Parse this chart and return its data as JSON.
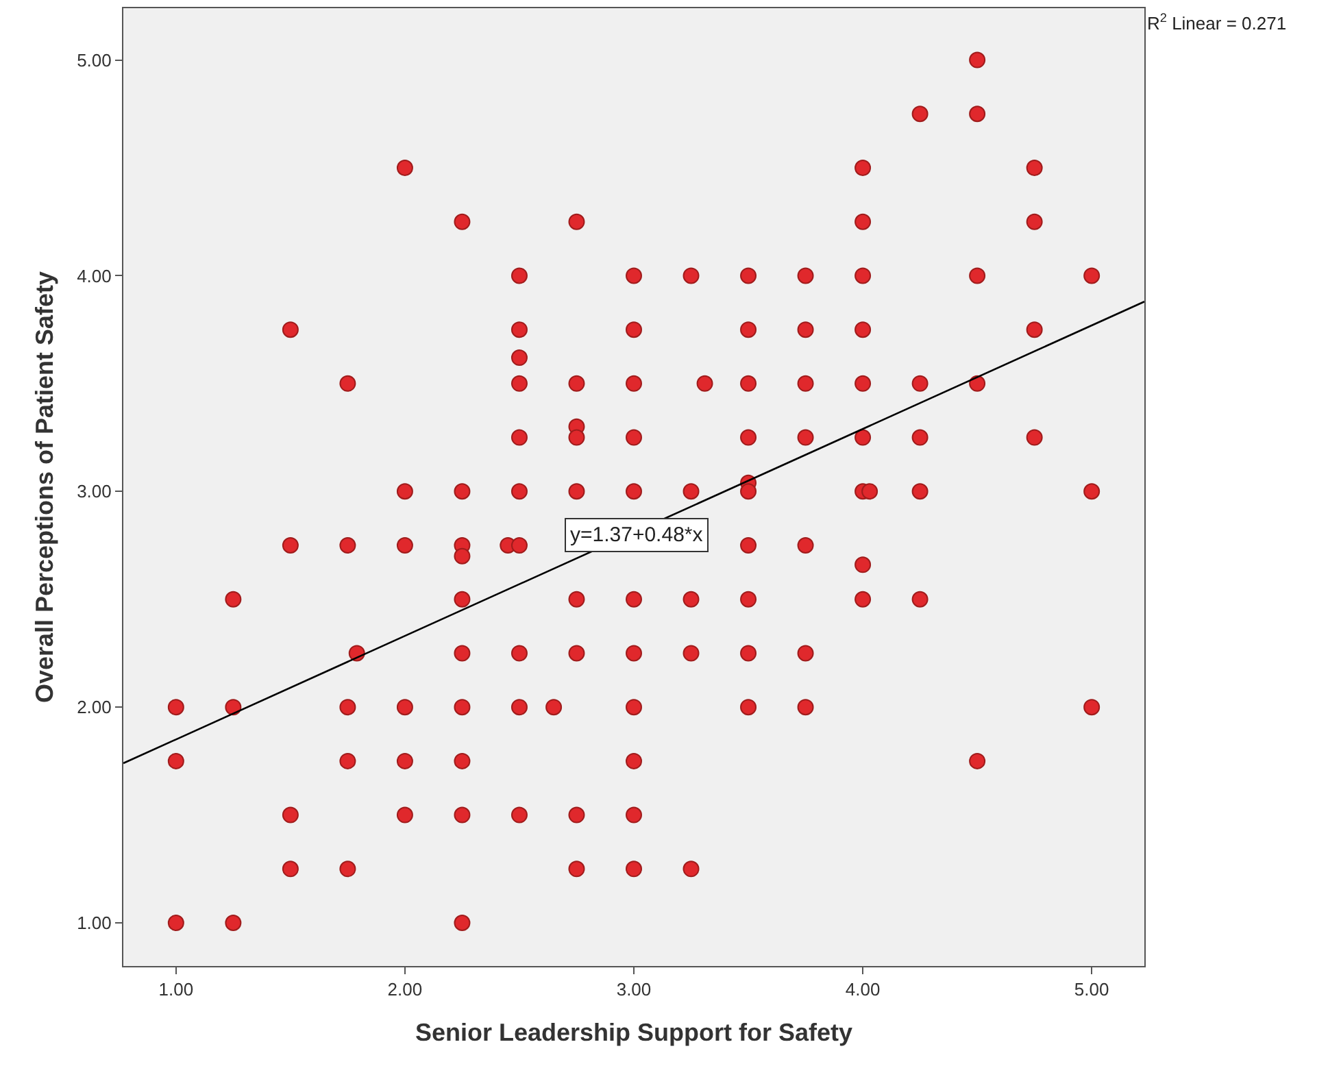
{
  "chart_data": {
    "type": "scatter",
    "xlabel": "Senior Leadership Support for Safety",
    "ylabel": "Overall Perceptions of Patient Safety",
    "annotations": [
      {
        "text": "y=1.37+0.48*x",
        "x": 3.01,
        "y": 2.8
      },
      "R$^{2}$ Linear = 0.271"
    ],
    "series": [
      {
        "marker": "circle",
        "color": "#e0282c",
        "x": [
          1,
          1,
          1,
          1.25,
          1.25,
          1.25,
          1.5,
          1.5,
          1.5,
          1.5,
          1.75,
          1.75,
          1.75,
          1.75,
          1.75,
          1.79,
          2,
          2,
          2,
          2,
          2,
          2,
          2.25,
          2.25,
          2.25,
          2.25,
          2.25,
          2.25,
          2.25,
          2.25,
          2.25,
          2.25,
          2.45,
          2.5,
          2.5,
          2.5,
          2.5,
          2.5,
          2.5,
          2.5,
          2.5,
          2.5,
          2.5,
          2.65,
          2.75,
          2.75,
          2.75,
          2.75,
          2.75,
          2.75,
          2.75,
          2.75,
          2.75,
          3,
          3,
          3,
          3,
          3,
          3,
          3,
          3,
          3,
          3,
          3,
          3.25,
          3.25,
          3.25,
          3.25,
          3.25,
          3.31,
          3.5,
          3.5,
          3.5,
          3.5,
          3.5,
          3.5,
          3.5,
          3.5,
          3.5,
          3.5,
          3.75,
          3.75,
          3.75,
          3.75,
          3.75,
          3.75,
          3.75,
          4,
          4,
          4,
          4,
          4,
          4,
          4,
          4,
          4,
          4.03,
          4.25,
          4.25,
          4.25,
          4.25,
          4.25,
          4.5,
          4.5,
          4.5,
          4.5,
          4.5,
          4.75,
          4.75,
          4.75,
          4.75,
          5,
          5,
          5
        ],
        "values": [
          2,
          1.75,
          1,
          2.5,
          2,
          1,
          3.75,
          2.75,
          1.5,
          1.25,
          3.5,
          2.75,
          2,
          1.75,
          1.25,
          2.25,
          4.5,
          3,
          2.75,
          2,
          1.75,
          1.5,
          4.25,
          3,
          2.75,
          2.7,
          2.5,
          2.25,
          2,
          1.75,
          1.5,
          1,
          2.75,
          4,
          3.75,
          3.62,
          3.5,
          3.25,
          3,
          2.75,
          2.25,
          2,
          1.5,
          2,
          4.25,
          3.5,
          3.3,
          3.25,
          3,
          2.5,
          2.25,
          1.5,
          1.25,
          4,
          3.75,
          3.5,
          3.25,
          3,
          2.5,
          2.25,
          2,
          1.75,
          1.5,
          1.25,
          4,
          3,
          2.5,
          2.25,
          1.25,
          3.5,
          4,
          3.75,
          3.5,
          3.25,
          3.04,
          3,
          2.75,
          2.5,
          2.25,
          2,
          4,
          3.75,
          3.5,
          3.25,
          2.75,
          2.25,
          2,
          4.5,
          4.25,
          4,
          3.75,
          3.5,
          3.25,
          3,
          2.66,
          2.5,
          3,
          4.75,
          3.5,
          3.25,
          3,
          2.5,
          5,
          4.75,
          4,
          3.5,
          1.75,
          4.5,
          4.25,
          3.75,
          3.25,
          4,
          3,
          2
        ]
      },
      {
        "type": "line",
        "marker": "none",
        "color": "#000000",
        "x": [
          0.77,
          5.23
        ],
        "values": [
          1.74,
          3.88
        ]
      }
    ],
    "grid": false,
    "xlim": [
      0.77,
      5.23
    ],
    "ylim": [
      0.8,
      5.24
    ],
    "xticks": [
      {
        "value": 1,
        "label": "1.00"
      },
      {
        "value": 2,
        "label": "2.00"
      },
      {
        "value": 3,
        "label": "3.00"
      },
      {
        "value": 4,
        "label": "4.00"
      },
      {
        "value": 5,
        "label": "5.00"
      }
    ],
    "yticks": [
      {
        "value": 1,
        "label": "1.00"
      },
      {
        "value": 2,
        "label": "2.00"
      },
      {
        "value": 3,
        "label": "3.00"
      },
      {
        "value": 4,
        "label": "4.00"
      },
      {
        "value": 5,
        "label": "5.00"
      }
    ]
  }
}
